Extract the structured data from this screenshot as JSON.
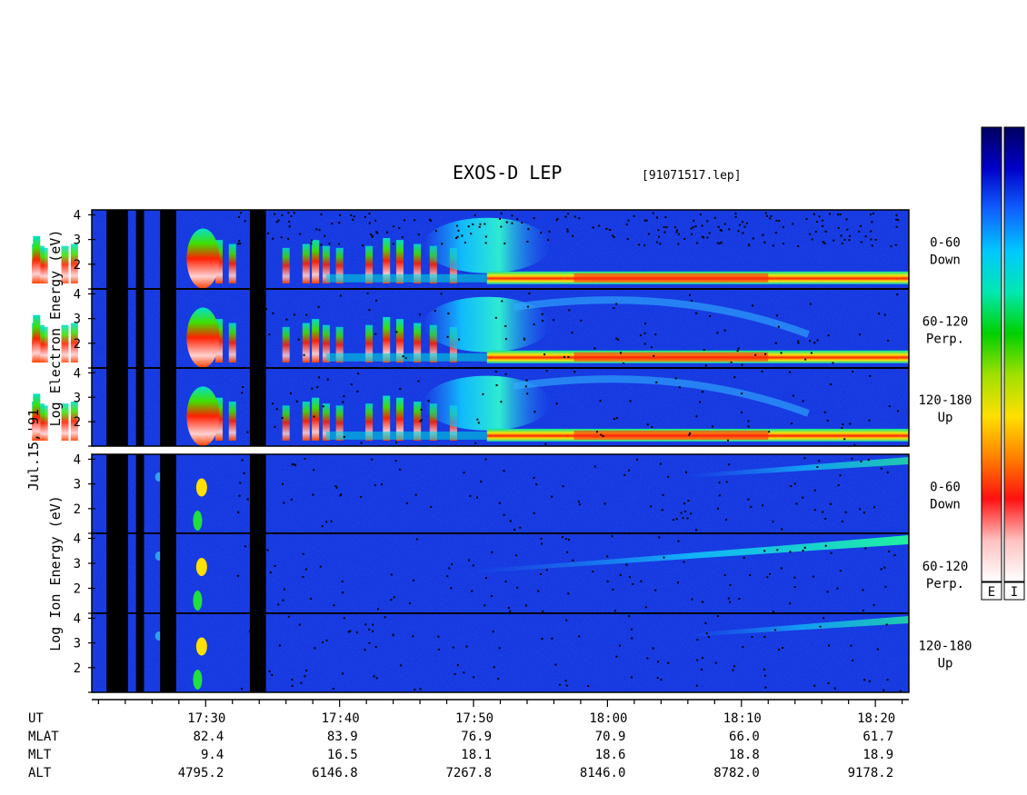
{
  "header": {
    "title": "EXOS-D LEP",
    "file_id": "[91071517.lep]",
    "date_label": "Jul.15,'91"
  },
  "chart_data": [
    {
      "type": "heatmap",
      "title": "EXOS-D LEP",
      "ylabel": "Log Electron Energy (eV)",
      "panels": [
        {
          "name": "0-60",
          "dir": "Down"
        },
        {
          "name": "60-120",
          "dir": "Perp."
        },
        {
          "name": "120-180",
          "dir": "Up"
        }
      ],
      "yticks": [
        "2",
        "3",
        "4"
      ],
      "ylim": [
        1,
        4.2
      ],
      "xlabel": "UT",
      "xticks": [
        "17:30",
        "17:40",
        "17:50",
        "18:00",
        "18:10",
        "18:20"
      ]
    },
    {
      "type": "heatmap",
      "ylabel": "Log Ion Energy (eV)",
      "panels": [
        {
          "name": "0-60",
          "dir": "Down"
        },
        {
          "name": "60-120",
          "dir": "Perp."
        },
        {
          "name": "120-180",
          "dir": "Up"
        }
      ],
      "yticks": [
        "2",
        "3",
        "4"
      ],
      "ylim": [
        1,
        4.2
      ],
      "xlabel": "UT",
      "xticks": [
        "17:30",
        "17:40",
        "17:50",
        "18:00",
        "18:10",
        "18:20"
      ]
    }
  ],
  "colorbars": [
    {
      "label": "E"
    },
    {
      "label": "I"
    }
  ],
  "colors": {
    "scale": [
      "#000060",
      "#0000c8",
      "#1060ff",
      "#00c8ff",
      "#00e8b0",
      "#00d000",
      "#a0e000",
      "#ffe000",
      "#ff8000",
      "#ff1010",
      "#ffc0c0",
      "#ffffff"
    ]
  },
  "ephemeris": {
    "labels": [
      "UT",
      "MLAT",
      "MLT",
      "ALT"
    ],
    "columns": [
      {
        "ut": "17:30",
        "mlat": "82.4",
        "mlt": "9.4",
        "alt": "4795.2"
      },
      {
        "ut": "17:40",
        "mlat": "83.9",
        "mlt": "16.5",
        "alt": "6146.8"
      },
      {
        "ut": "17:50",
        "mlat": "76.9",
        "mlt": "18.1",
        "alt": "7267.8"
      },
      {
        "ut": "18:00",
        "mlat": "70.9",
        "mlt": "18.6",
        "alt": "8146.0"
      },
      {
        "ut": "18:10",
        "mlat": "66.0",
        "mlt": "18.8",
        "alt": "8782.0"
      },
      {
        "ut": "18:20",
        "mlat": "61.7",
        "mlt": "18.9",
        "alt": "9178.2"
      }
    ]
  }
}
